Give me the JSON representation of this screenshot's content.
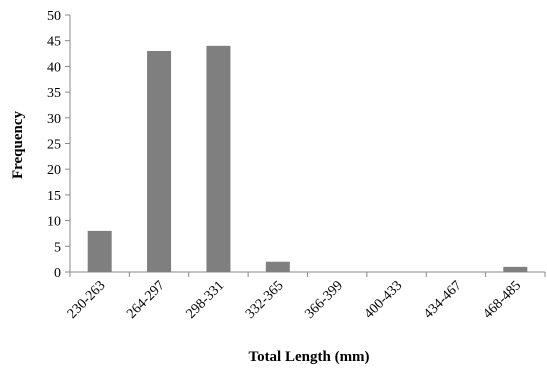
{
  "chart_data": {
    "type": "bar",
    "xlabel": "Total Length (mm)",
    "ylabel": "Frequency",
    "categories": [
      "230-263",
      "264-297",
      "298-331",
      "332-365",
      "366-399",
      "400-433",
      "434-467",
      "468-485"
    ],
    "values": [
      8,
      43,
      44,
      2,
      0,
      0,
      0,
      1
    ],
    "ylim": [
      0,
      50
    ],
    "yticks": [
      0,
      5,
      10,
      15,
      20,
      25,
      30,
      35,
      40,
      45,
      50
    ],
    "grid": false,
    "legend": "none",
    "bar_color": "#7f7f7f"
  }
}
